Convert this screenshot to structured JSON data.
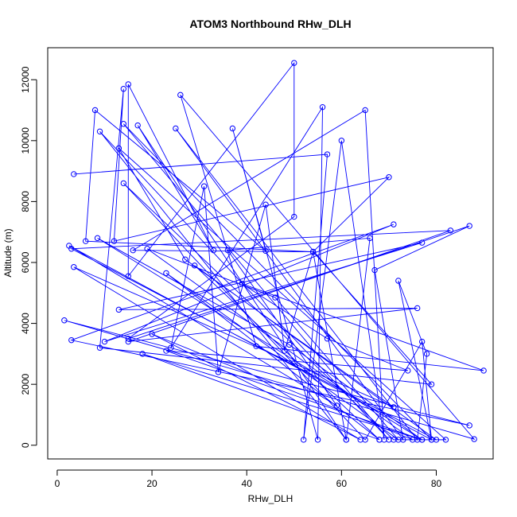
{
  "chart_data": {
    "type": "line",
    "title": "ATOM3 Northbound RHw_DLH",
    "xlabel": "RHw_DLH",
    "ylabel": "Altitude (m)",
    "xlim": [
      -2,
      92
    ],
    "ylim": [
      -450,
      13050
    ],
    "xticks": [
      0,
      20,
      40,
      60,
      80
    ],
    "yticks": [
      0,
      2000,
      4000,
      6000,
      8000,
      10000,
      12000
    ],
    "grid": false,
    "series_color": "#0000ff",
    "marker": "open-circle",
    "series": [
      {
        "values": [
          [
            3.5,
            8900
          ],
          [
            57,
            9550
          ],
          [
            52,
            180
          ],
          [
            60,
            10000
          ],
          [
            69,
            180
          ],
          [
            65,
            11000
          ],
          [
            16,
            6400
          ],
          [
            54,
            6350
          ],
          [
            79,
            2000
          ],
          [
            9,
            3200
          ],
          [
            14,
            11700
          ],
          [
            12,
            6700
          ],
          [
            70,
            8800
          ],
          [
            54,
            6350
          ],
          [
            6,
            6700
          ],
          [
            8,
            11000
          ],
          [
            44,
            6380
          ],
          [
            37,
            10400
          ],
          [
            55,
            180
          ],
          [
            56,
            11100
          ],
          [
            24,
            3200
          ],
          [
            31,
            8500
          ],
          [
            34,
            2400
          ],
          [
            44,
            7900
          ],
          [
            48,
            3100
          ],
          [
            54,
            6350
          ],
          [
            61,
            180
          ],
          [
            17,
            10500
          ],
          [
            33,
            6400
          ],
          [
            15,
            11850
          ],
          [
            15,
            5550
          ],
          [
            50,
            12550
          ],
          [
            50,
            7500
          ],
          [
            15,
            3500
          ],
          [
            87,
            7200
          ],
          [
            67,
            5750
          ],
          [
            73,
            180
          ],
          [
            25,
            10400
          ],
          [
            76,
            180
          ],
          [
            78,
            3000
          ],
          [
            72,
            5400
          ],
          [
            79,
            180
          ],
          [
            2.5,
            6550
          ],
          [
            59,
            1300
          ],
          [
            36,
            6400
          ],
          [
            66,
            6800
          ],
          [
            61,
            180
          ],
          [
            9,
            10300
          ],
          [
            70,
            180
          ],
          [
            14,
            10550
          ],
          [
            79,
            180
          ],
          [
            77,
            3400
          ],
          [
            65,
            180
          ],
          [
            14,
            8600
          ],
          [
            71,
            180
          ],
          [
            82,
            180
          ],
          [
            13,
            9750
          ],
          [
            27,
            6100
          ],
          [
            71,
            1250
          ],
          [
            3.5,
            5850
          ],
          [
            64,
            180
          ],
          [
            20,
            3650
          ],
          [
            75,
            180
          ],
          [
            19,
            6450
          ],
          [
            46,
            4850
          ],
          [
            72,
            180
          ],
          [
            23,
            5650
          ],
          [
            68,
            180
          ],
          [
            29,
            5900
          ],
          [
            80,
            180
          ],
          [
            3,
            6450
          ],
          [
            83,
            7050
          ],
          [
            15,
            3400
          ],
          [
            76,
            4500
          ],
          [
            13,
            4450
          ],
          [
            77,
            6650
          ],
          [
            10,
            3400
          ],
          [
            71,
            7250
          ],
          [
            3,
            3450
          ],
          [
            87,
            650
          ],
          [
            1.5,
            4100
          ],
          [
            88,
            200
          ],
          [
            26,
            11500
          ],
          [
            42,
            3250
          ],
          [
            90,
            2450
          ],
          [
            39,
            5300
          ],
          [
            57,
            3500
          ],
          [
            74,
            2450
          ],
          [
            23,
            3100
          ],
          [
            77,
            180
          ],
          [
            8.5,
            6800
          ],
          [
            49,
            3300
          ],
          [
            77,
            180
          ],
          [
            18,
            3000
          ],
          [
            68,
            180
          ]
        ]
      }
    ]
  }
}
